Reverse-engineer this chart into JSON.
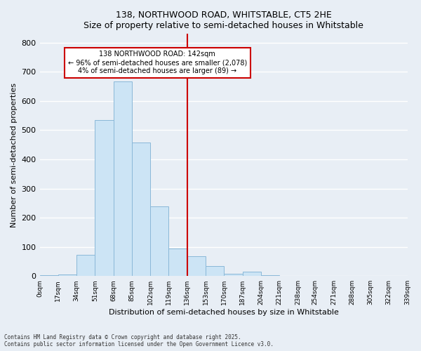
{
  "title": "138, NORTHWOOD ROAD, WHITSTABLE, CT5 2HE",
  "subtitle": "Size of property relative to semi-detached houses in Whitstable",
  "xlabel": "Distribution of semi-detached houses by size in Whitstable",
  "ylabel": "Number of semi-detached properties",
  "bar_color": "#cce4f5",
  "bar_edge_color": "#8ab8d8",
  "background_color": "#e8eef5",
  "grid_color": "#ffffff",
  "vline_x": 136,
  "vline_color": "#cc0000",
  "annotation_title": "138 NORTHWOOD ROAD: 142sqm",
  "annotation_line1": "← 96% of semi-detached houses are smaller (2,078)",
  "annotation_line2": "4% of semi-detached houses are larger (89) →",
  "footnote1": "Contains HM Land Registry data © Crown copyright and database right 2025.",
  "footnote2": "Contains public sector information licensed under the Open Government Licence v3.0.",
  "bin_edges": [
    0,
    17,
    34,
    51,
    68,
    85,
    102,
    119,
    136,
    153,
    170,
    187,
    204,
    221,
    238,
    254,
    271,
    288,
    305,
    322,
    339
  ],
  "bin_counts": [
    2,
    5,
    72,
    535,
    666,
    458,
    238,
    95,
    67,
    34,
    8,
    15,
    2,
    1,
    1,
    1,
    1,
    1,
    1,
    1
  ],
  "ylim": [
    0,
    830
  ],
  "xlim": [
    0,
    339
  ],
  "yticks": [
    0,
    100,
    200,
    300,
    400,
    500,
    600,
    700,
    800
  ],
  "tick_labels": [
    "0sqm",
    "17sqm",
    "34sqm",
    "51sqm",
    "68sqm",
    "85sqm",
    "102sqm",
    "119sqm",
    "136sqm",
    "153sqm",
    "170sqm",
    "187sqm",
    "204sqm",
    "221sqm",
    "238sqm",
    "254sqm",
    "271sqm",
    "288sqm",
    "305sqm",
    "322sqm",
    "339sqm"
  ]
}
